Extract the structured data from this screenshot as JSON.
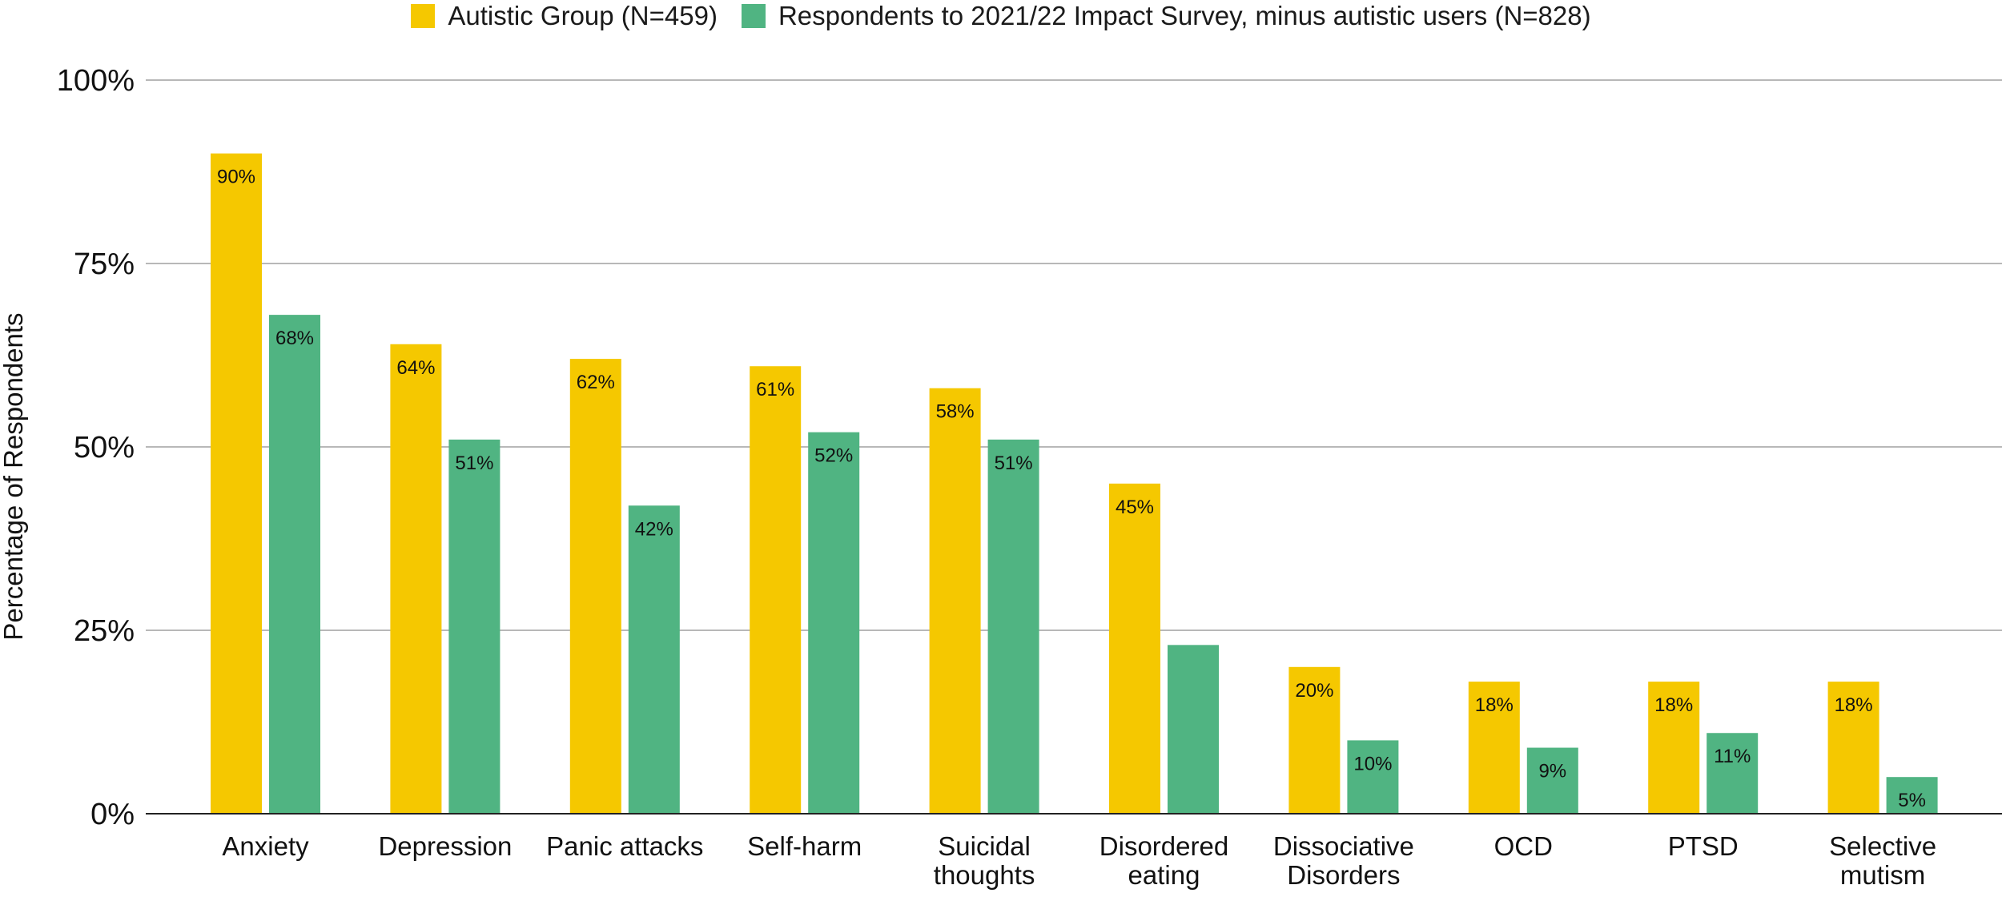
{
  "colors": {
    "autistic": "#F5C800",
    "survey": "#50B482",
    "grid": "#b8b8b8",
    "axis": "#222222"
  },
  "legend": [
    {
      "label": "Autistic Group (N=459)",
      "color": "#F5C800"
    },
    {
      "label": "Respondents to 2021/22 Impact Survey, minus autistic users (N=828)",
      "color": "#50B482"
    }
  ],
  "chart_data": {
    "type": "bar",
    "title": "",
    "xlabel": "",
    "ylabel": "Percentage of Respondents",
    "ylim": [
      0,
      100
    ],
    "yticks": [
      "0%",
      "25%",
      "50%",
      "75%",
      "100%"
    ],
    "ytick_values": [
      0,
      25,
      50,
      75,
      100
    ],
    "grid": true,
    "legend_position": "top-center",
    "categories": [
      [
        "Anxiety"
      ],
      [
        "Depression"
      ],
      [
        "Panic attacks"
      ],
      [
        "Self-harm"
      ],
      [
        "Suicidal",
        "thoughts"
      ],
      [
        "Disordered",
        "eating"
      ],
      [
        "Dissociative",
        "Disorders"
      ],
      [
        "OCD"
      ],
      [
        "PTSD"
      ],
      [
        "Selective",
        "mutism"
      ]
    ],
    "series": [
      {
        "name": "Autistic Group (N=459)",
        "values": [
          90,
          64,
          62,
          61,
          58,
          45,
          20,
          18,
          18,
          18
        ],
        "labels": [
          "90%",
          "64%",
          "62%",
          "61%",
          "58%",
          "45%",
          "20%",
          "18%",
          "18%",
          "18%"
        ]
      },
      {
        "name": "Respondents to 2021/22 Impact Survey, minus autistic users (N=828)",
        "values": [
          68,
          51,
          42,
          52,
          51,
          23,
          10,
          9,
          11,
          5
        ],
        "labels": [
          "68%",
          "51%",
          "42%",
          "52%",
          "51%",
          "",
          "10%",
          "9%",
          "11%",
          "5%"
        ]
      }
    ]
  }
}
